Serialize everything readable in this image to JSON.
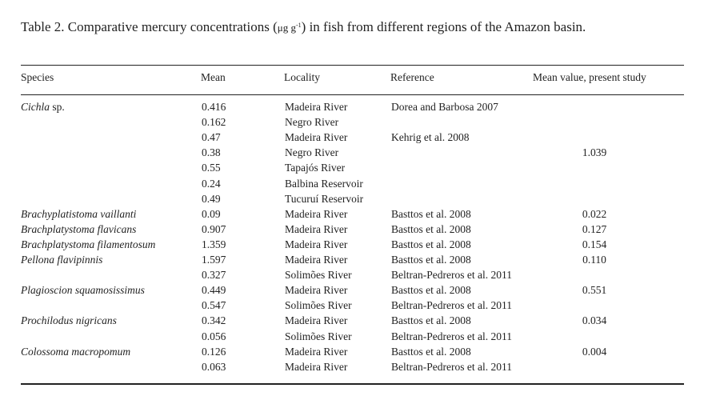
{
  "caption": {
    "prefix": "Table 2. Comparative mercury concentrations (",
    "unit": "μg g",
    "unit_sup": "-1",
    "suffix": ") in fish from different regions of the Amazon basin."
  },
  "headers": {
    "species": "Species",
    "mean": "Mean",
    "locality": "Locality",
    "reference": "Reference",
    "present": "Mean value,  present study"
  },
  "rows": [
    {
      "species": "Cichla",
      "species_suffix": " sp.",
      "mean": "0.416",
      "locality": "Madeira River",
      "reference": "Dorea and Barbosa  2007",
      "present": ""
    },
    {
      "species": "",
      "species_suffix": "",
      "mean": "0.162",
      "locality": "Negro River",
      "reference": "",
      "present": ""
    },
    {
      "species": "",
      "species_suffix": "",
      "mean": "0.47",
      "locality": "Madeira River",
      "reference": "Kehrig et al.  2008",
      "present": ""
    },
    {
      "species": "",
      "species_suffix": "",
      "mean": "0.38",
      "locality": "Negro River",
      "reference": "",
      "present": "1.039"
    },
    {
      "species": "",
      "species_suffix": "",
      "mean": "0.55",
      "locality": "Tapajós River",
      "reference": "",
      "present": ""
    },
    {
      "species": "",
      "species_suffix": "",
      "mean": "0.24",
      "locality": "Balbina Reservoir",
      "reference": "",
      "present": ""
    },
    {
      "species": "",
      "species_suffix": "",
      "mean": "0.49",
      "locality": "Tucuruí Reservoir",
      "reference": "",
      "present": ""
    },
    {
      "species": "Brachyplatistoma vaillanti",
      "species_suffix": "",
      "mean": "0.09",
      "locality": "Madeira River",
      "reference": "Basttos et al. 2008",
      "present": "0.022"
    },
    {
      "species": "Brachplatystoma flavicans",
      "species_suffix": "",
      "mean": "0.907",
      "locality": "Madeira River",
      "reference": "Basttos et al. 2008",
      "present": "0.127"
    },
    {
      "species": "Brachplatystoma filamentosum",
      "species_suffix": "",
      "mean": "1.359",
      "locality": "Madeira River",
      "reference": "Basttos et al. 2008",
      "present": "0.154"
    },
    {
      "species": "Pellona flavipinnis",
      "species_suffix": "",
      "mean": "1.597",
      "locality": "Madeira River",
      "reference": "Basttos et al. 2008",
      "present": "0.110"
    },
    {
      "species": "",
      "species_suffix": "",
      "mean": "0.327",
      "locality": "Solimões River",
      "reference": "Beltran-Pedreros et al.  2011",
      "present": ""
    },
    {
      "species": "Plagioscion squamosissimus",
      "species_suffix": "",
      "mean": "0.449",
      "locality": "Madeira River",
      "reference": "Basttos et al.  2008",
      "present": "0.551"
    },
    {
      "species": "",
      "species_suffix": "",
      "mean": "0.547",
      "locality": "Solimões River",
      "reference": "Beltran-Pedreros et al. 2011",
      "present": ""
    },
    {
      "species": "Prochilodus nigricans",
      "species_suffix": "",
      "mean": "0.342",
      "locality": "Madeira River",
      "reference": "Basttos et al. 2008",
      "present": "0.034"
    },
    {
      "species": "",
      "species_suffix": "",
      "mean": "0.056",
      "locality": "Solimões River",
      "reference": "Beltran-Pedreros et al. 2011",
      "present": ""
    },
    {
      "species": "Colossoma macropomum",
      "species_suffix": "",
      "mean": "0.126",
      "locality": "Madeira River",
      "reference": "Basttos et al. 2008",
      "present": "0.004"
    },
    {
      "species": "",
      "species_suffix": "",
      "mean": "0.063",
      "locality": "Madeira River",
      "reference": "Beltran-Pedreros et al. 2011",
      "present": ""
    }
  ]
}
